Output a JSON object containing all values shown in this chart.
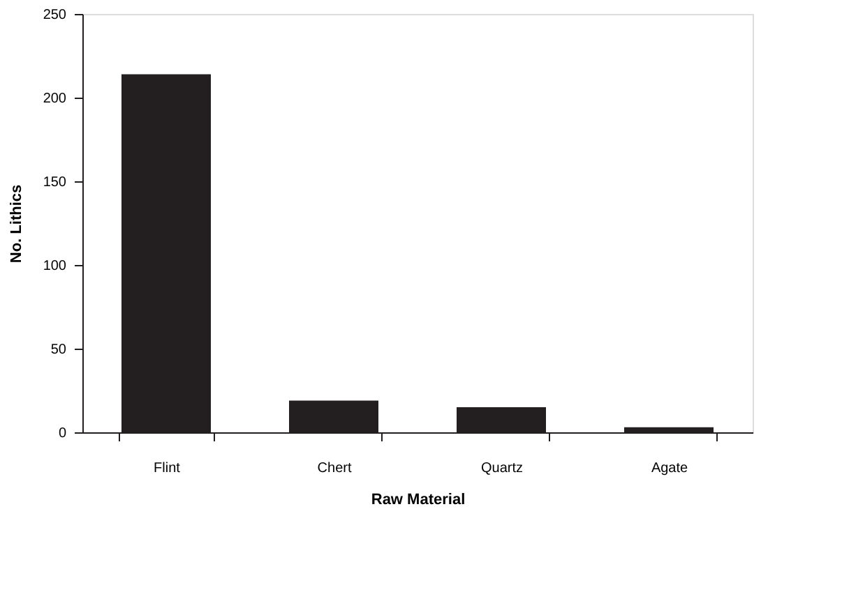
{
  "chart_data": {
    "type": "bar",
    "xlabel": "Raw Material",
    "ylabel": "No. Lithics",
    "categories": [
      "Flint",
      "Chert",
      "Quartz",
      "Agate"
    ],
    "values": [
      214,
      19,
      15,
      3
    ],
    "color": "#231f20",
    "ylim": [
      0,
      250
    ],
    "yticks": [
      0,
      50,
      100,
      150,
      200,
      250
    ],
    "grid": false
  }
}
